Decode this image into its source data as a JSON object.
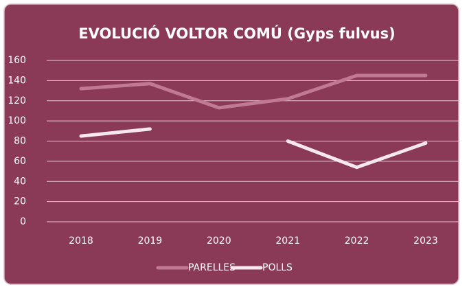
{
  "chart_data": {
    "type": "line",
    "title": "EVOLUCIÓ VOLTOR COMÚ (Gyps fulvus)",
    "categories": [
      "2018",
      "2019",
      "2020",
      "2021",
      "2022",
      "2023"
    ],
    "series": [
      {
        "name": "PARELLES",
        "color": "#c27a93",
        "values": [
          132,
          137,
          113,
          122,
          145,
          145
        ]
      },
      {
        "name": "POLLS",
        "color": "#f7e8ed",
        "values": [
          85,
          92,
          null,
          80,
          54,
          78
        ]
      }
    ],
    "ylim": [
      0,
      160
    ],
    "yticks": [
      0,
      20,
      40,
      60,
      80,
      100,
      120,
      140,
      160
    ],
    "grid": true,
    "legend": "bottom"
  }
}
